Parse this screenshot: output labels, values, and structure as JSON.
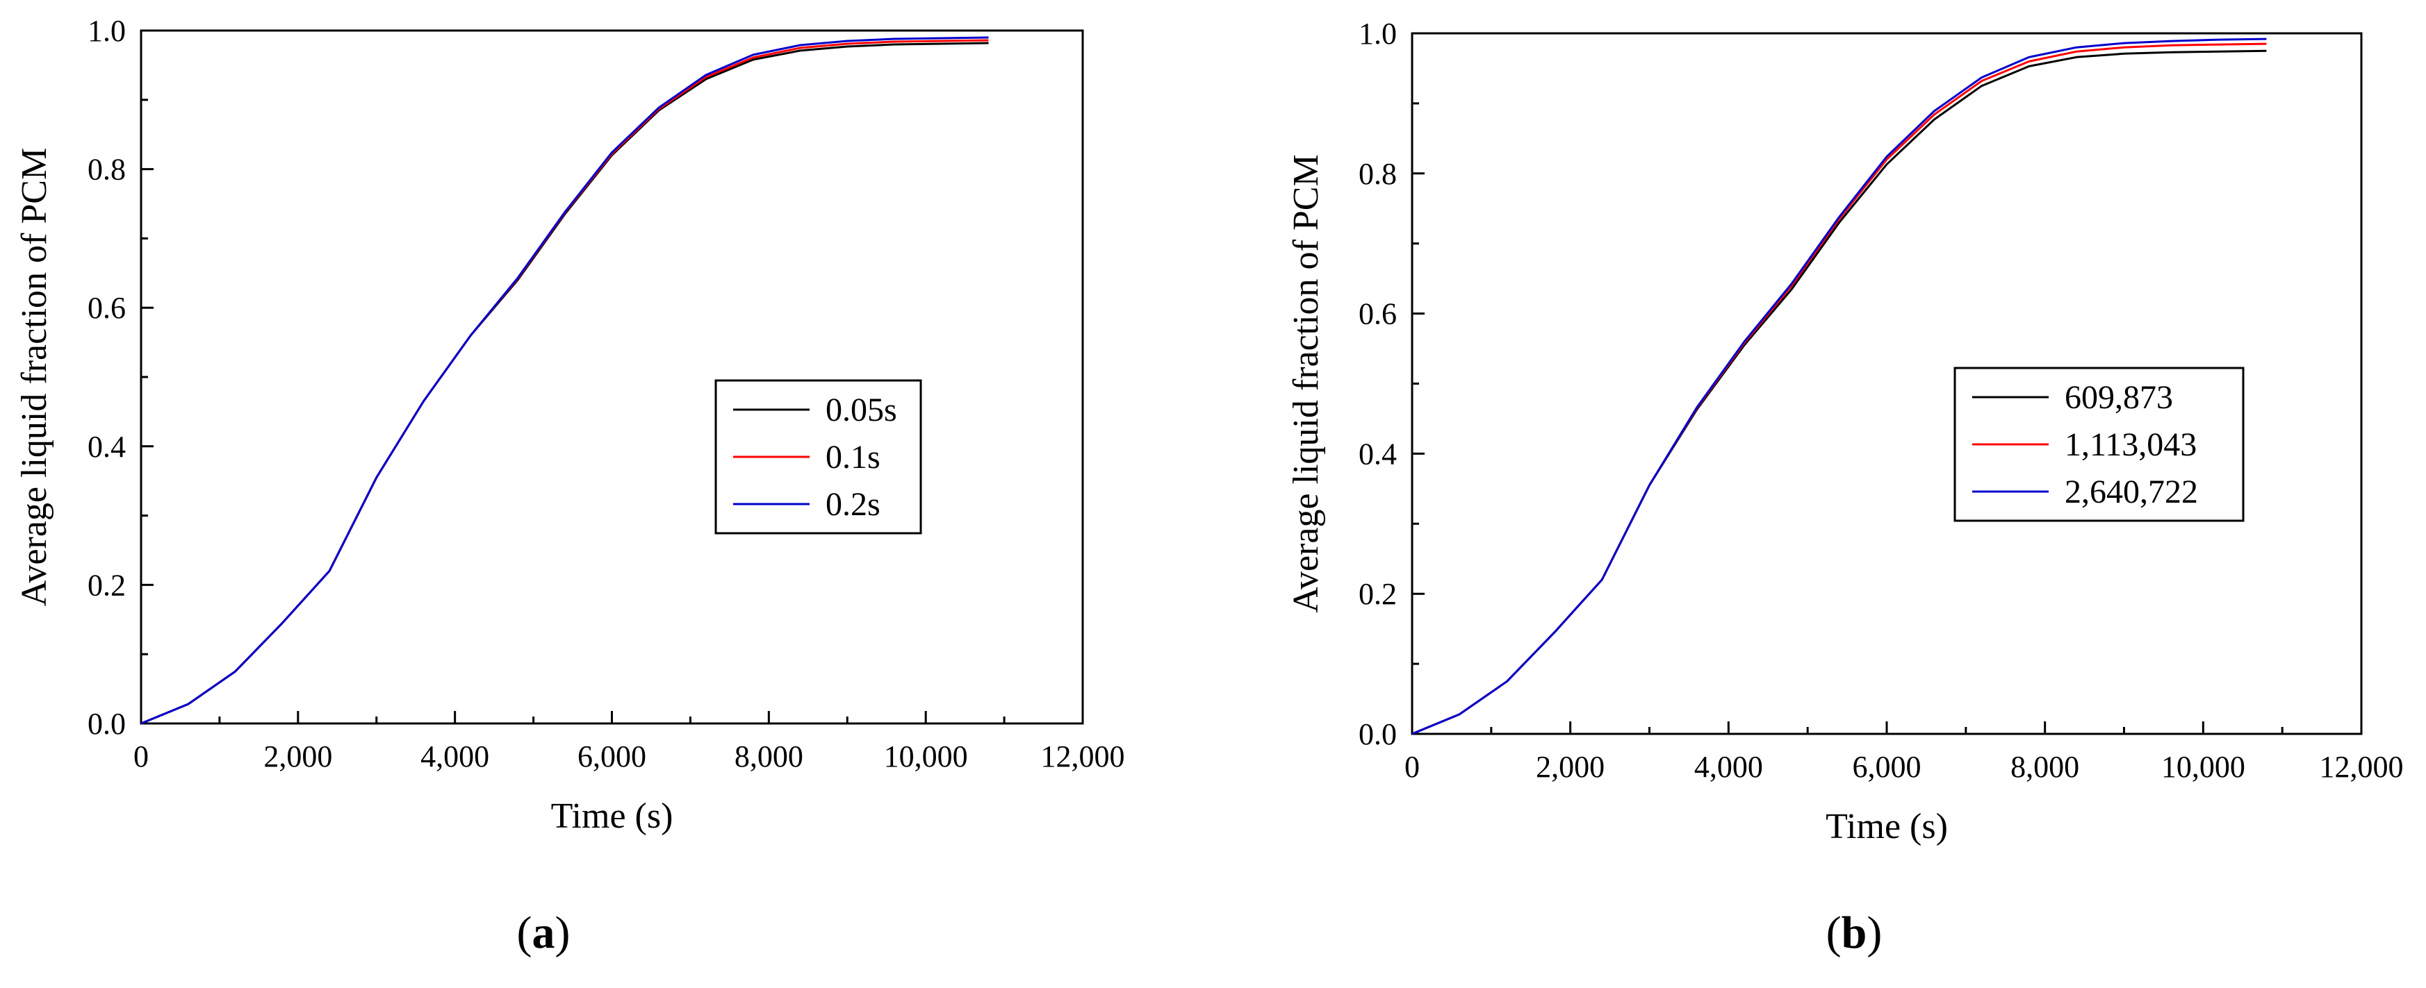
{
  "chart_data": [
    {
      "type": "line",
      "panel": "a",
      "panel_label": "a",
      "xlabel": "Time (s)",
      "ylabel": "Average liquid fraction of PCM",
      "xlim": [
        0,
        12000
      ],
      "ylim": [
        0,
        1.0
      ],
      "xticks": [
        0,
        2000,
        4000,
        6000,
        8000,
        10000,
        12000
      ],
      "xtick_labels": [
        "0",
        "2,000",
        "4,000",
        "6,000",
        "8,000",
        "10,000",
        "12,000"
      ],
      "yticks": [
        0,
        0.2,
        0.4,
        0.6,
        0.8,
        1.0
      ],
      "ytick_labels": [
        "0.0",
        "0.2",
        "0.4",
        "0.6",
        "0.8",
        "1.0"
      ],
      "legend_position": "center-right",
      "x": [
        0,
        600,
        1200,
        1800,
        2400,
        3000,
        3600,
        4200,
        4800,
        5400,
        6000,
        6600,
        7200,
        7800,
        8400,
        9000,
        9600,
        10200,
        10800
      ],
      "series": [
        {
          "name": "0.05s",
          "color": "#000000",
          "values": [
            0,
            0.028,
            0.075,
            0.145,
            0.22,
            0.355,
            0.465,
            0.56,
            0.64,
            0.735,
            0.82,
            0.885,
            0.93,
            0.958,
            0.971,
            0.977,
            0.98,
            0.981,
            0.982
          ]
        },
        {
          "name": "0.1s",
          "color": "#ff0000",
          "values": [
            0,
            0.028,
            0.075,
            0.145,
            0.22,
            0.355,
            0.465,
            0.56,
            0.642,
            0.737,
            0.822,
            0.887,
            0.933,
            0.961,
            0.975,
            0.981,
            0.984,
            0.985,
            0.986
          ]
        },
        {
          "name": "0.2s",
          "color": "#0000cc",
          "values": [
            0,
            0.028,
            0.075,
            0.145,
            0.22,
            0.355,
            0.465,
            0.56,
            0.643,
            0.738,
            0.824,
            0.889,
            0.936,
            0.965,
            0.979,
            0.985,
            0.988,
            0.989,
            0.99
          ]
        }
      ]
    },
    {
      "type": "line",
      "panel": "b",
      "panel_label": "b",
      "xlabel": "Time (s)",
      "ylabel": "Average liquid fraction of PCM",
      "xlim": [
        0,
        12000
      ],
      "ylim": [
        0,
        1.0
      ],
      "xticks": [
        0,
        2000,
        4000,
        6000,
        8000,
        10000,
        12000
      ],
      "xtick_labels": [
        "0",
        "2,000",
        "4,000",
        "6,000",
        "8,000",
        "10,000",
        "12,000"
      ],
      "yticks": [
        0,
        0.2,
        0.4,
        0.6,
        0.8,
        1.0
      ],
      "ytick_labels": [
        "0.0",
        "0.2",
        "0.4",
        "0.6",
        "0.8",
        "1.0"
      ],
      "legend_position": "center-right",
      "x": [
        0,
        600,
        1200,
        1800,
        2400,
        3000,
        3600,
        4200,
        4800,
        5400,
        6000,
        6600,
        7200,
        7800,
        8400,
        9000,
        9600,
        10200,
        10800
      ],
      "series": [
        {
          "name": "609,873",
          "color": "#000000",
          "values": [
            0,
            0.028,
            0.075,
            0.145,
            0.22,
            0.355,
            0.463,
            0.555,
            0.635,
            0.73,
            0.813,
            0.877,
            0.925,
            0.953,
            0.966,
            0.971,
            0.973,
            0.974,
            0.975
          ]
        },
        {
          "name": "1,113,043",
          "color": "#ff0000",
          "values": [
            0,
            0.028,
            0.075,
            0.145,
            0.22,
            0.355,
            0.465,
            0.558,
            0.64,
            0.735,
            0.82,
            0.884,
            0.932,
            0.96,
            0.974,
            0.98,
            0.983,
            0.984,
            0.985
          ]
        },
        {
          "name": "2,640,722",
          "color": "#0000cc",
          "values": [
            0,
            0.028,
            0.075,
            0.145,
            0.22,
            0.355,
            0.466,
            0.56,
            0.643,
            0.738,
            0.824,
            0.889,
            0.937,
            0.966,
            0.98,
            0.986,
            0.989,
            0.991,
            0.992
          ]
        }
      ]
    }
  ]
}
